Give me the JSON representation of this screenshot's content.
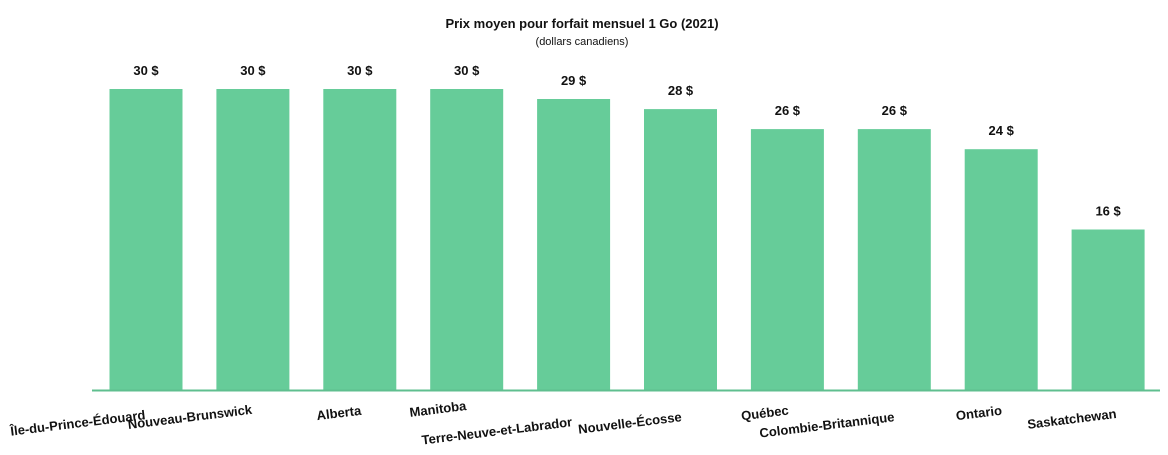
{
  "chart_data": {
    "type": "bar",
    "title": "Prix moyen pour forfait mensuel 1 Go (2021)",
    "subtitle": "(dollars canadiens)",
    "xlabel": "",
    "ylabel": "",
    "ylim": [
      0,
      30
    ],
    "grid": false,
    "legend": "none",
    "bar_color": "#66cc99",
    "axis_color": "#5fbf8f",
    "categories": [
      "Île-du-Prince-Édouard",
      "Nouveau-Brunswick",
      "Alberta",
      "Manitoba",
      "Terre-Neuve-et-Labrador",
      "Nouvelle-Écosse",
      "Québec",
      "Colombie-Britannique",
      "Ontario",
      "Saskatchewan"
    ],
    "values": [
      30,
      30,
      30,
      30,
      29,
      28,
      26,
      26,
      24,
      16
    ],
    "value_labels": [
      "30 $",
      "30 $",
      "30 $",
      "30 $",
      "29 $",
      "28 $",
      "26 $",
      "26 $",
      "24 $",
      "16 $"
    ]
  }
}
